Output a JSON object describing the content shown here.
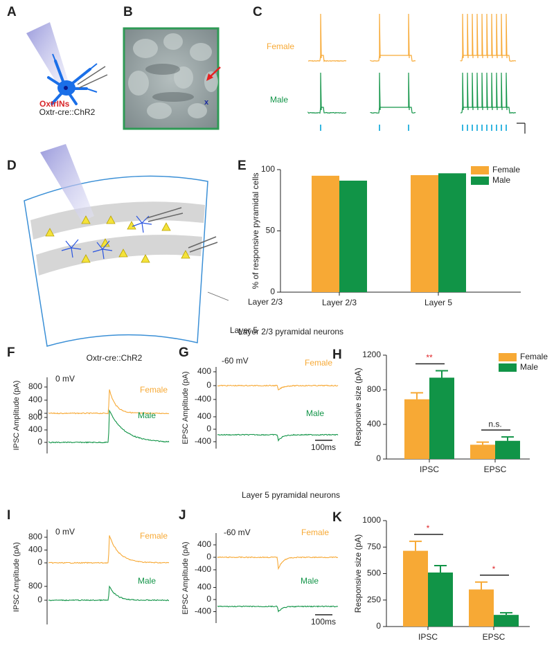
{
  "panel_labels": [
    "A",
    "B",
    "C",
    "D",
    "E",
    "F",
    "G",
    "H",
    "I",
    "J",
    "K"
  ],
  "panel_a": {
    "cell": "OxtrINs",
    "caption": "Oxtr-cre::ChR2"
  },
  "panel_c": {
    "female": "Female",
    "male": "Male"
  },
  "panel_d": {
    "layer_upper": "Layer 2/3",
    "layer_lower": "Layer 5",
    "caption": "Oxtr-cre::ChR2"
  },
  "section_titles": [
    "Layer 2/3 pyramidal neurons",
    "Layer 5 pyramidal neurons"
  ],
  "traces": [
    {
      "voltage": "0 mV",
      "ylabel": "IPSC Amplitude (pA)",
      "sub": [
        {
          "name": "Female",
          "yticks": [
            0,
            400,
            800
          ]
        },
        {
          "name": "Male",
          "yticks": [
            0,
            400,
            800
          ]
        }
      ]
    },
    {
      "voltage": "-60 mV",
      "ylabel": "EPSC Amplitude (pA)",
      "scale_bar": "100ms",
      "sub": [
        {
          "name": "Female",
          "yticks": [
            -400,
            0,
            400
          ]
        },
        {
          "name": "Male",
          "yticks": [
            -400,
            0,
            400
          ]
        }
      ]
    },
    {
      "voltage": "0 mV",
      "ylabel": "IPSC Amplitude (pA)",
      "sub": [
        {
          "name": "Female",
          "yticks": [
            0,
            400,
            800
          ]
        },
        {
          "name": "Male",
          "yticks": [
            0,
            800
          ]
        }
      ]
    },
    {
      "voltage": "-60 mV",
      "ylabel": "EPSC Amplitude (pA)",
      "scale_bar": "100ms",
      "sub": [
        {
          "name": "Female",
          "yticks": [
            -400,
            0,
            400
          ]
        },
        {
          "name": "Male",
          "yticks": [
            -400,
            0,
            400
          ]
        }
      ]
    }
  ],
  "chart_data": [
    {
      "type": "bar",
      "ylabel": "% of responsive pyramidal cells",
      "categories": [
        "Layer 2/3",
        "Layer 5"
      ],
      "series": [
        {
          "name": "Female",
          "color": "#f7a935",
          "values": [
            95,
            95.5
          ]
        },
        {
          "name": "Male",
          "color": "#119447",
          "values": [
            91,
            97
          ]
        }
      ],
      "ylim": [
        0,
        100
      ],
      "yticks": [
        0,
        50,
        100
      ],
      "legend": "top-right"
    },
    {
      "type": "bar",
      "ylabel": "Responsive size (pA)",
      "categories": [
        "IPSC",
        "EPSC"
      ],
      "series": [
        {
          "name": "Female",
          "color": "#f7a935",
          "values": [
            690,
            165
          ],
          "errors": [
            75,
            30
          ]
        },
        {
          "name": "Male",
          "color": "#119447",
          "values": [
            940,
            210
          ],
          "errors": [
            80,
            45
          ]
        }
      ],
      "ylim": [
        0,
        1200
      ],
      "yticks": [
        0,
        400,
        800,
        1200
      ],
      "legend": "top-right",
      "annotations": [
        "**",
        "n.s."
      ],
      "annotation_colors": [
        "#e0262a",
        "#222222"
      ]
    },
    {
      "type": "bar",
      "ylabel": "Responsive size (pA)",
      "categories": [
        "IPSC",
        "EPSC"
      ],
      "series": [
        {
          "name": "Female",
          "color": "#f7a935",
          "values": [
            715,
            350
          ],
          "errors": [
            90,
            70
          ]
        },
        {
          "name": "Male",
          "color": "#119447",
          "values": [
            510,
            110
          ],
          "errors": [
            65,
            20
          ]
        }
      ],
      "ylim": [
        0,
        1000
      ],
      "yticks": [
        0,
        250,
        500,
        750,
        1000
      ],
      "annotations": [
        "*",
        "*"
      ],
      "annotation_colors": [
        "#e0262a",
        "#e0262a"
      ]
    }
  ]
}
